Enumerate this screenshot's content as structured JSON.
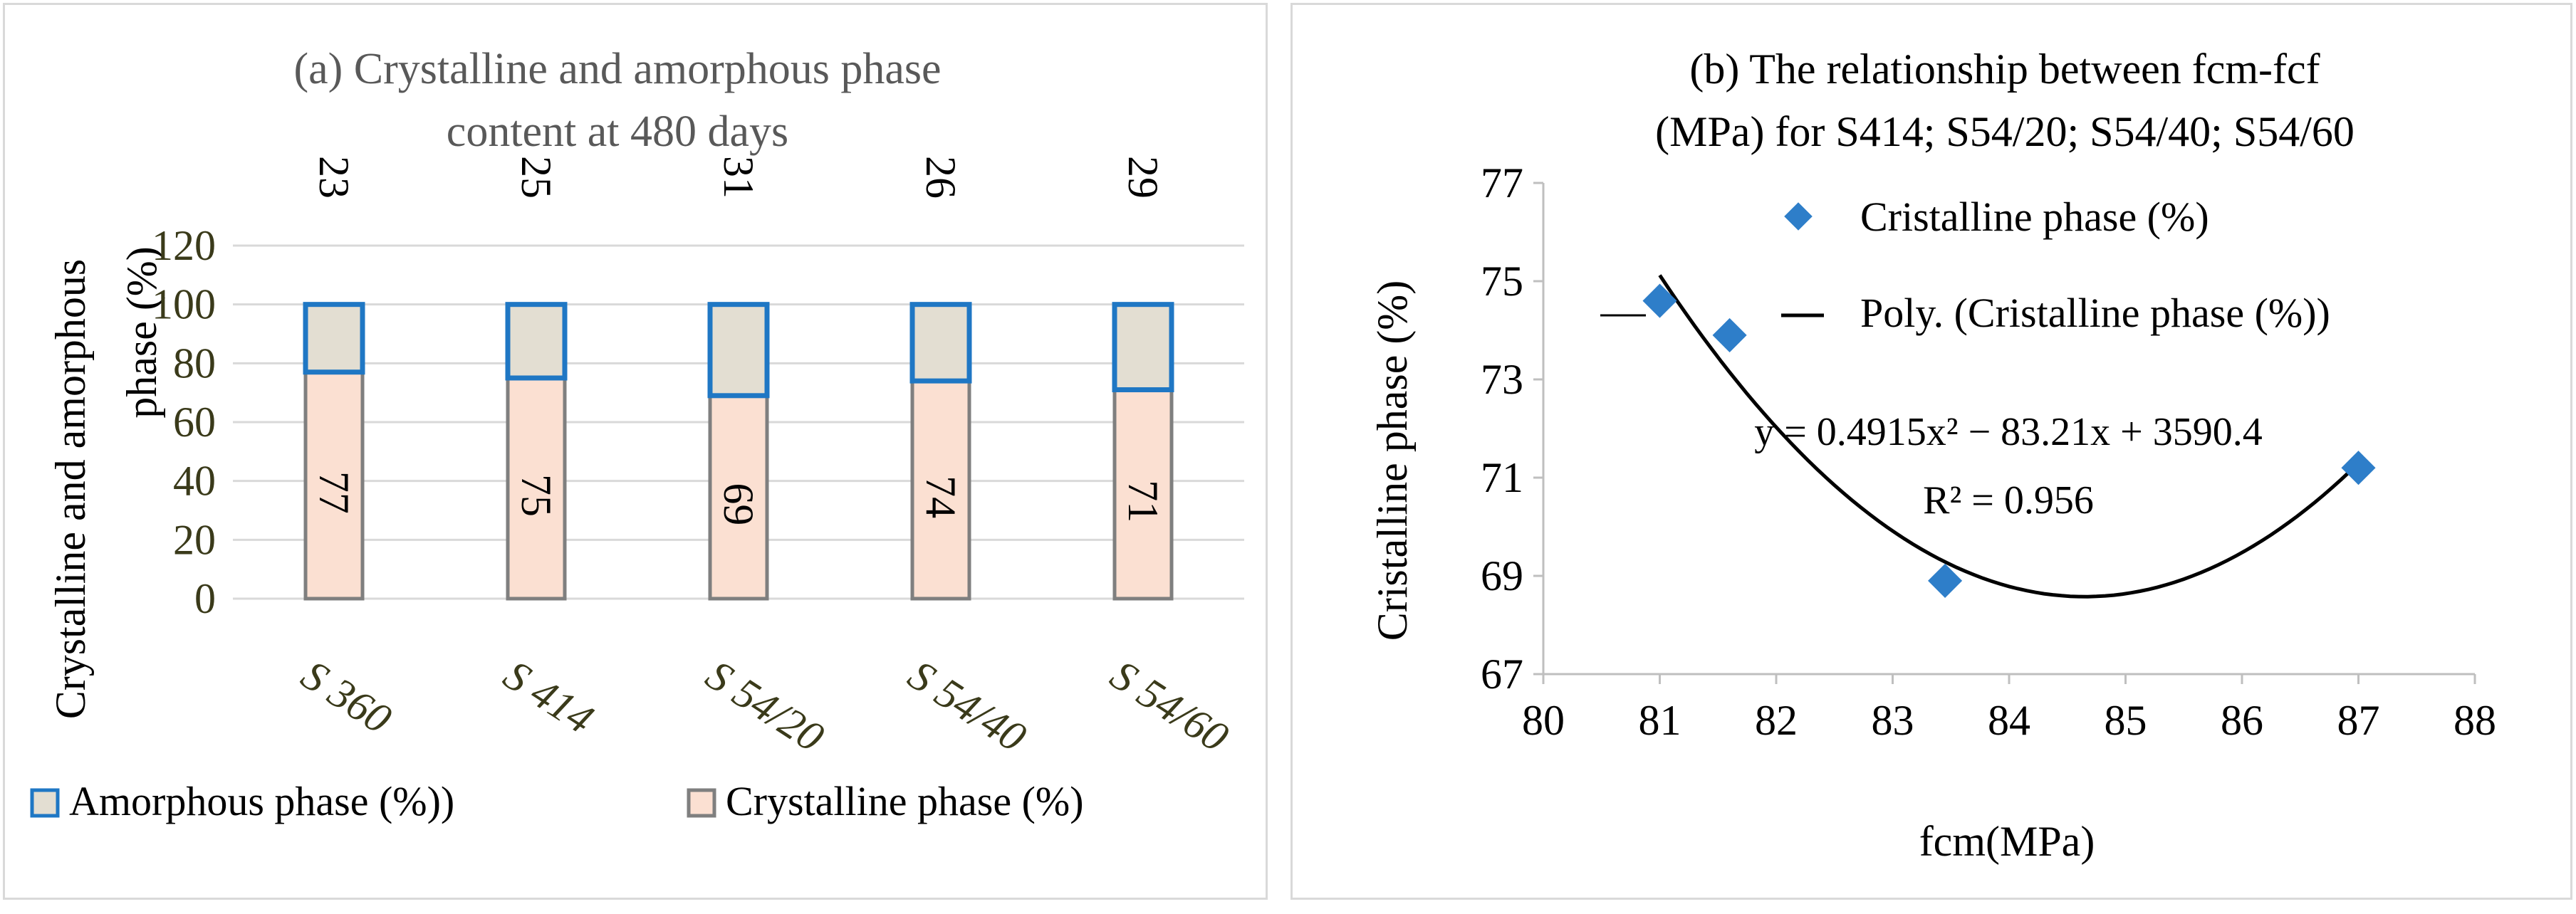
{
  "chart_data": [
    {
      "type": "bar",
      "stacked": true,
      "title_line1": "(a) Crystalline and amorphous phase",
      "title_line2": "content at 480 days",
      "ylabel_line1": "Crystalline and amorphous",
      "ylabel_line2": "phase  (%)",
      "ylim": [
        0,
        120
      ],
      "yticks": [
        "0",
        "20",
        "40",
        "60",
        "80",
        "100",
        "120"
      ],
      "categories": [
        "S 360",
        "S 414",
        "S 54/20",
        "S 54/40",
        "S 54/60"
      ],
      "series": [
        {
          "name": "Crystalline phase (%)",
          "values": [
            77,
            75,
            69,
            74,
            71
          ],
          "labels": [
            "77",
            "75",
            "69",
            "74",
            "71"
          ],
          "color": "#fbe0d2",
          "border": "#7f7f7f"
        },
        {
          "name": "Amorphous phase (%))",
          "values": [
            23,
            25,
            31,
            26,
            29
          ],
          "labels": [
            "23",
            "25",
            "31",
            "26",
            "29"
          ],
          "color": "#e3ded2",
          "border": "#1f77c4"
        }
      ],
      "legend": [
        "Amorphous phase (%))",
        "Crystalline phase (%)"
      ],
      "legend_position": "bottom"
    },
    {
      "type": "scatter",
      "title_line1": "(b) The relationship between fcm-fcf",
      "title_line2": "(MPa) for S414; S54/20; S54/40; S54/60",
      "xlabel": "fcm(MPa)",
      "ylabel": "Cristalline phase (%)",
      "xlim": [
        80,
        88
      ],
      "ylim": [
        67,
        77
      ],
      "xticks": [
        "80",
        "81",
        "82",
        "83",
        "84",
        "85",
        "86",
        "87",
        "88"
      ],
      "yticks": [
        "67",
        "69",
        "71",
        "73",
        "75",
        "77"
      ],
      "points": [
        {
          "x": 81.0,
          "y": 74.6
        },
        {
          "x": 81.6,
          "y": 73.9
        },
        {
          "x": 83.45,
          "y": 68.9
        },
        {
          "x": 87.0,
          "y": 71.2
        }
      ],
      "marker_color": "#2e7ec9",
      "trendline": {
        "a": 0.4915,
        "b": -83.21,
        "c": 3590.4,
        "x_start": 81.0,
        "x_end": 87.0
      },
      "legend": [
        "Cristalline phase (%)",
        "Poly. (Cristalline phase (%))"
      ],
      "legend_position": "top-right",
      "equation": "y = 0.4915x² −  83.21x + 3590.4",
      "r_squared": "R² = 0.956"
    }
  ]
}
